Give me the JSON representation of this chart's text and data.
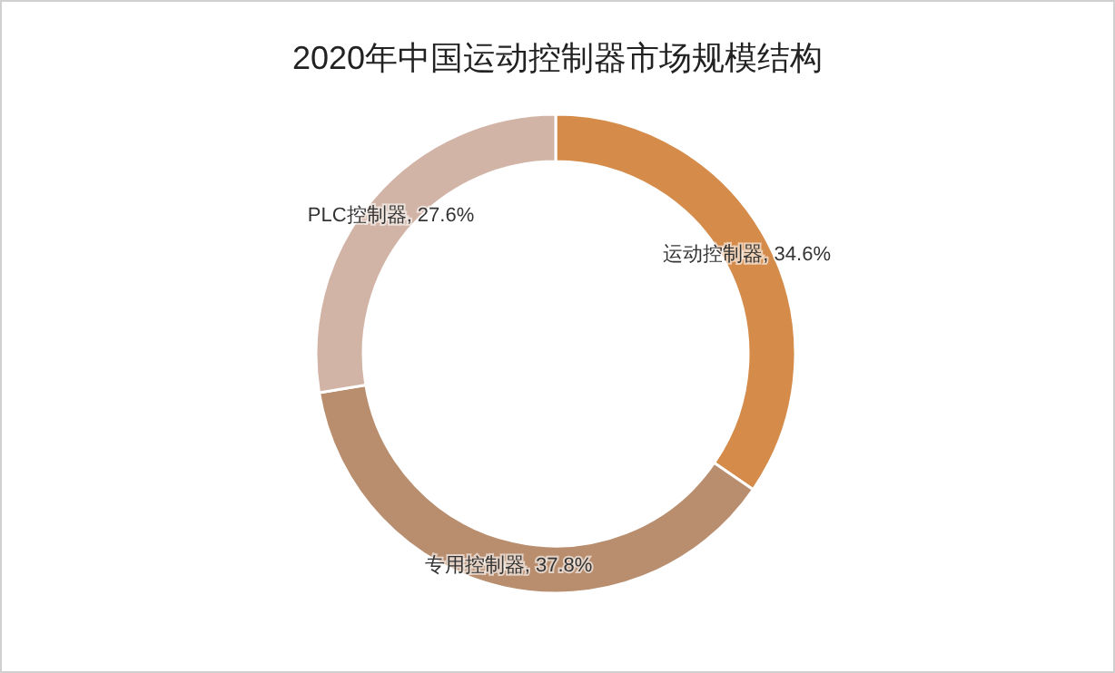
{
  "chart_data": {
    "type": "donut",
    "title": "2020年中国运动控制器市场规模结构",
    "categories": [
      "运动控制器",
      "专用控制器",
      "PLC控制器"
    ],
    "values": [
      34.6,
      37.8,
      27.6
    ],
    "colors": [
      "#d58b4a",
      "#b98e6e",
      "#d2b4a6"
    ],
    "value_labels": [
      ", 34.6%",
      ", 37.8%",
      ", 27.6%"
    ]
  }
}
